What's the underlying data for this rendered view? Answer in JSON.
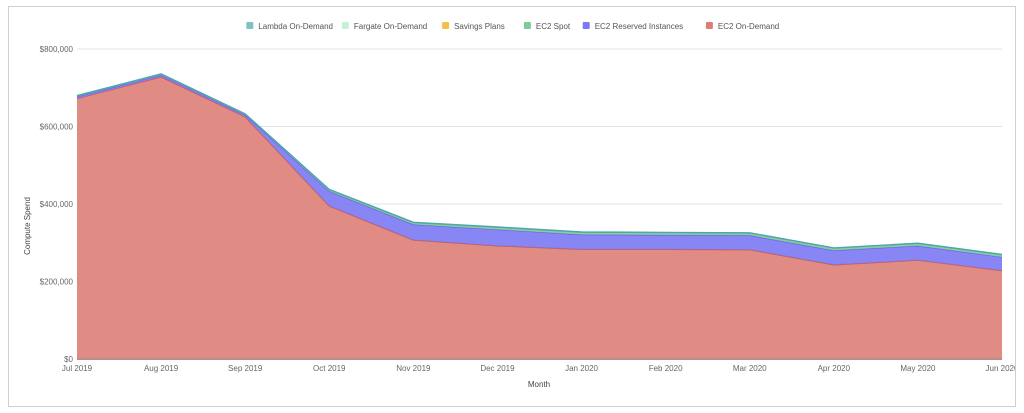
{
  "chart_data": {
    "type": "area",
    "stacked": true,
    "xlabel": "Month",
    "ylabel": "Compute Spend",
    "ylim": [
      0,
      800000
    ],
    "y_ticks": [
      "$0",
      "$200,000",
      "$400,000",
      "$600,000",
      "$800,000"
    ],
    "grid": true,
    "legend_position": "top",
    "categories": [
      "Jul 2019",
      "Aug 2019",
      "Sep 2019",
      "Oct 2019",
      "Nov 2019",
      "Dec 2019",
      "Jan 2020",
      "Feb 2020",
      "Mar 2020",
      "Apr 2020",
      "May 2020",
      "Jun 2020"
    ],
    "series": [
      {
        "name": "EC2 On-Demand",
        "color": "#dd7e75",
        "line_color": "#d1574a",
        "values": [
          672000,
          728000,
          625000,
          395000,
          307000,
          292000,
          283000,
          283000,
          282000,
          243000,
          255000,
          228000
        ]
      },
      {
        "name": "EC2 Reserved Instances",
        "color": "#7b79f4",
        "line_color": "#6b5cf0",
        "values": [
          5000,
          5000,
          5000,
          38000,
          40000,
          42000,
          38000,
          37000,
          37000,
          37000,
          37000,
          35000
        ]
      },
      {
        "name": "EC2 Spot",
        "color": "#7fc99a",
        "line_color": "#5fb07e",
        "values": [
          2000,
          2000,
          2000,
          4000,
          5000,
          6000,
          6000,
          6000,
          6000,
          6000,
          6000,
          6000
        ]
      },
      {
        "name": "Savings Plans",
        "color": "#efc24b",
        "line_color": "#e2b22a",
        "values": [
          0,
          0,
          0,
          0,
          0,
          0,
          0,
          0,
          0,
          0,
          0,
          0
        ]
      },
      {
        "name": "Fargate On-Demand",
        "color": "#c7f0d4",
        "line_color": "#a5e3b9",
        "values": [
          0,
          0,
          0,
          0,
          0,
          0,
          0,
          0,
          0,
          0,
          0,
          0
        ]
      },
      {
        "name": "Lambda On-Demand",
        "color": "#7fc0c9",
        "line_color": "#4aa6b3",
        "values": [
          1000,
          1000,
          1000,
          1000,
          1000,
          1000,
          1000,
          1000,
          1000,
          1000,
          1000,
          1000
        ]
      }
    ],
    "legend_order": [
      "Lambda On-Demand",
      "Fargate On-Demand",
      "Savings Plans",
      "EC2 Spot",
      "EC2 Reserved Instances",
      "EC2 On-Demand"
    ]
  }
}
